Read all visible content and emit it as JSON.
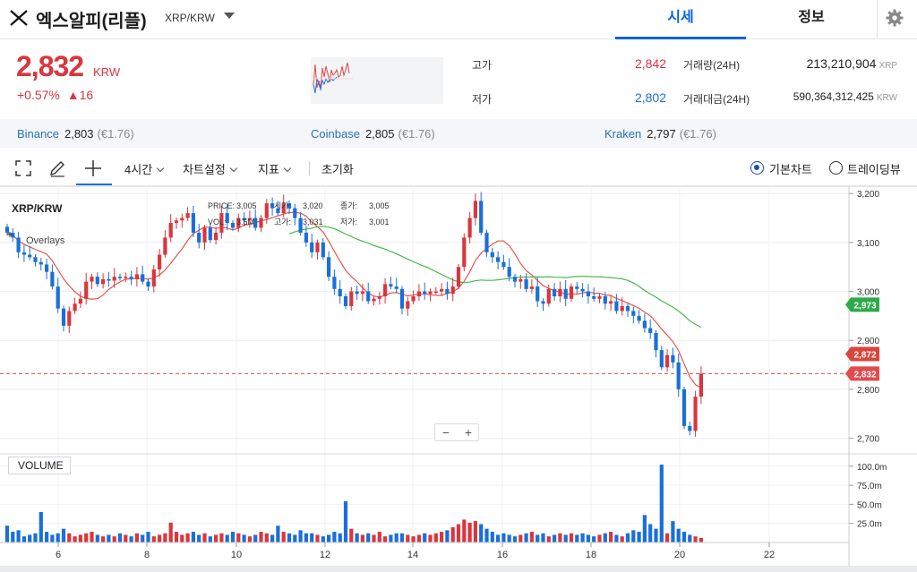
{
  "header": {
    "coin_name": "엑스알피(리플)",
    "pair": "XRP/KRW",
    "tabs": [
      {
        "label": "시세",
        "active": true
      },
      {
        "label": "정보",
        "active": false
      }
    ],
    "settings_icon": "gear-icon",
    "logo_icon": "xrp-logo-icon"
  },
  "price": {
    "current": "2,832",
    "unit": "KRW",
    "change_pct": "+0.57%",
    "change_abs": "▲16",
    "color": "#d9363e"
  },
  "stats": {
    "high_label": "고가",
    "high_value": "2,842",
    "low_label": "저가",
    "low_value": "2,802",
    "volume_label": "거래량(24H)",
    "volume_value": "213,210,904",
    "volume_unit": "XRP",
    "amount_label": "거래대금(24H)",
    "amount_value": "590,364,312,425",
    "amount_unit": "KRW"
  },
  "exchanges": [
    {
      "name": "Binance",
      "price": "2,803",
      "usd": "(€1.76)"
    },
    {
      "name": "Coinbase",
      "price": "2,805",
      "usd": "(€1.76)"
    },
    {
      "name": "Kraken",
      "price": "2,797",
      "usd": "(€1.76)"
    }
  ],
  "toolbar": {
    "fullscreen_icon": "fullscreen-icon",
    "draw_icon": "pencil-icon",
    "crosshair_icon": "crosshair-icon",
    "interval": "4시간",
    "chart_settings": "차트설정",
    "indicators": "지표",
    "reset": "초기화",
    "chart_type_basic": "기본차트",
    "chart_type_tv": "트레이딩뷰",
    "selected_type": "기본차트"
  },
  "chart_overlay": {
    "pair_label": "XRP/KRW",
    "overlays_label": "Overlays",
    "price_label": "PRICE:",
    "price_val": "3,005",
    "open_label": "시가:",
    "open_val": "3,020",
    "close_label": "종가:",
    "close_val": "3,005",
    "vol_label": "VOL:",
    "vol_val": "3.5M",
    "high_label": "고가:",
    "high_val": "3,031",
    "low_label": "저가:",
    "low_val": "3,001",
    "volume_panel_label": "VOLUME",
    "zoom_out": "−",
    "zoom_in": "+"
  },
  "chart_data": {
    "type": "candlestick",
    "price_axis_ticks": [
      "3,200",
      "3,100",
      "3,000",
      "2,900",
      "2,800",
      "2,700"
    ],
    "price_ylim": [
      2670,
      3215
    ],
    "volume_axis_ticks": [
      "100.0m",
      "75.0m",
      "50.0m",
      "25.0m"
    ],
    "volume_ylim": [
      0,
      115
    ],
    "x_ticks": [
      "6",
      "8",
      "10",
      "12",
      "14",
      "16",
      "18",
      "20",
      "22"
    ],
    "price_tags": {
      "ma_green": "2,973",
      "ma_red": "2,872",
      "current": "2,832"
    },
    "tag_colors": {
      "green": "#2eaa4a",
      "red": "#d9463e",
      "current": "#e14b4b"
    },
    "up_color": "#d9363e",
    "down_color": "#1a6fd8",
    "candles_close": [
      3120,
      3110,
      3080,
      3075,
      3070,
      3060,
      3055,
      3040,
      3010,
      2965,
      2930,
      2960,
      2975,
      2985,
      3020,
      3030,
      3015,
      3025,
      3022,
      3030,
      3028,
      3030,
      3025,
      3035,
      3020,
      3010,
      3045,
      3075,
      3110,
      3140,
      3145,
      3150,
      3160,
      3120,
      3100,
      3130,
      3105,
      3120,
      3160,
      3140,
      3130,
      3150,
      3145,
      3150,
      3130,
      3150,
      3180,
      3170,
      3160,
      3180,
      3170,
      3150,
      3120,
      3100,
      3080,
      3100,
      3070,
      3030,
      3005,
      2990,
      2970,
      3000,
      2995,
      3000,
      2980,
      2985,
      2990,
      3015,
      3010,
      3005,
      2965,
      2980,
      2990,
      3000,
      2995,
      3000,
      3000,
      3005,
      2995,
      3010,
      3050,
      3110,
      3150,
      3185,
      3120,
      3080,
      3070,
      3060,
      3050,
      3030,
      3020,
      3025,
      3005,
      3010,
      2980,
      2975,
      3005,
      2990,
      3005,
      2985,
      3010,
      3005,
      3000,
      2990,
      2985,
      2990,
      2975,
      2980,
      2960,
      2970,
      2960,
      2950,
      2940,
      2925,
      2915,
      2880,
      2845,
      2870,
      2855,
      2800,
      2725,
      2715,
      2785,
      2832
    ]
  },
  "colors": {
    "accent": "#0b63d8",
    "up": "#d9363e",
    "down": "#1a6fd8",
    "ma_red": "#e0584f",
    "ma_green": "#47b84a"
  }
}
